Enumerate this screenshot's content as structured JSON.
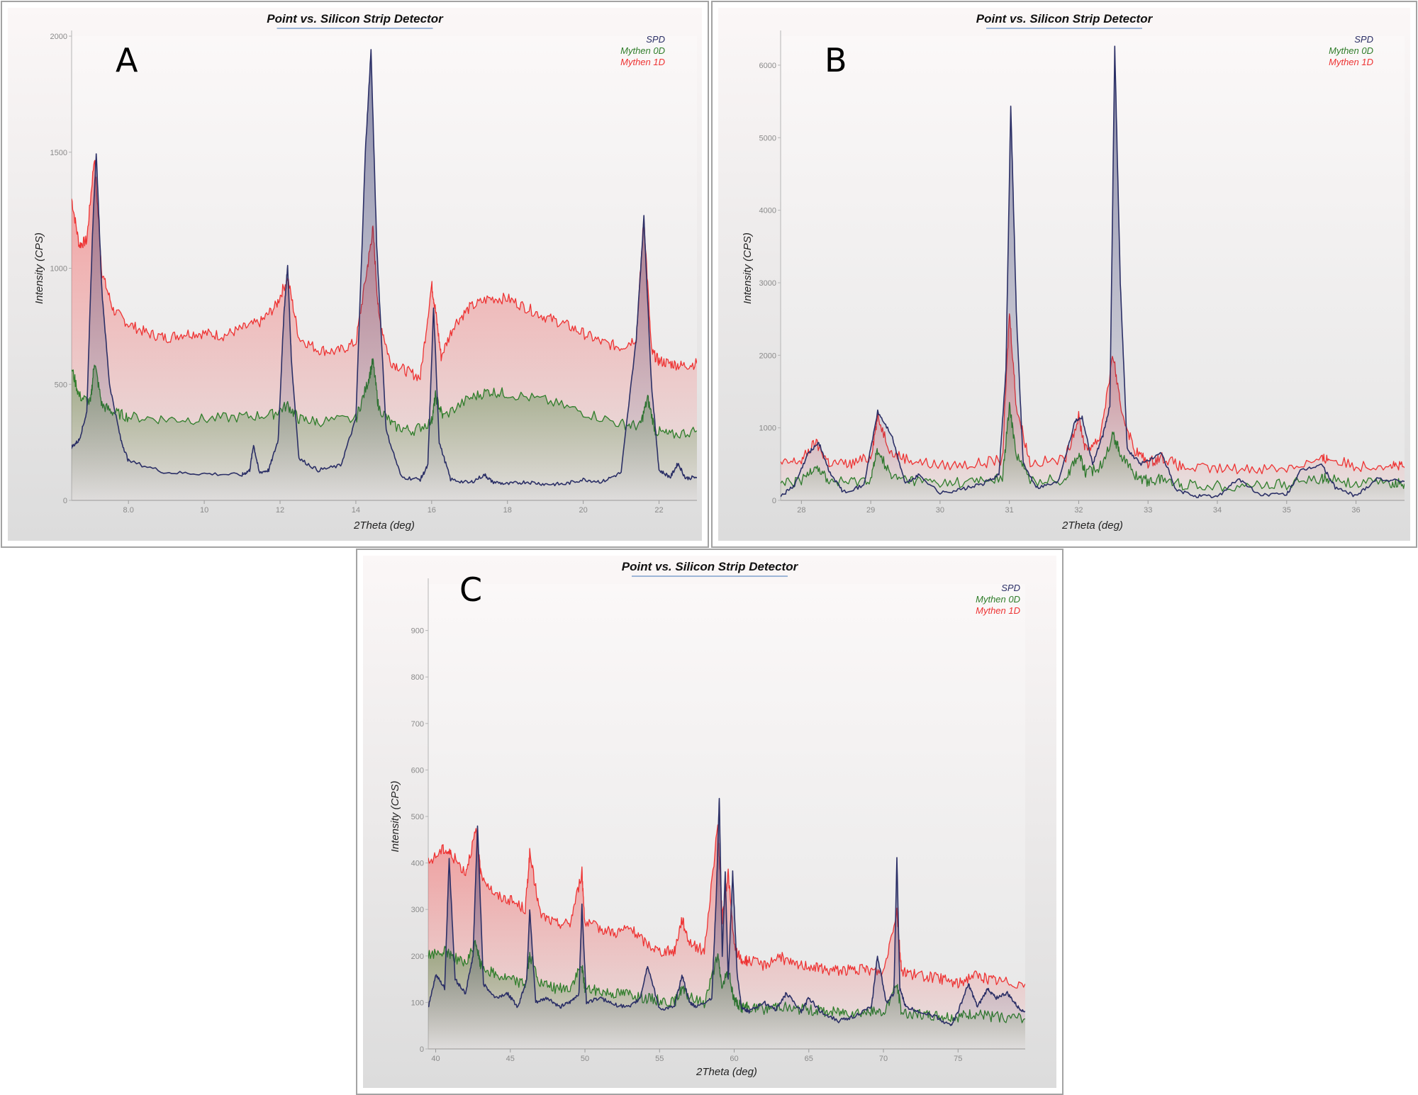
{
  "colors": {
    "SPD": "#2b2f66",
    "Mythen 0D": "#2f7d2a",
    "Mythen 1D": "#ee3333",
    "background_top": "#fbf7f7",
    "background_bottom": "#dcdcdc",
    "title_underline": "#4a7fbf"
  },
  "chart_data": [
    {
      "panel_letter": "A",
      "type": "area",
      "title": "Point vs. Silicon Strip Detector",
      "xlabel": "2Theta (deg)",
      "ylabel": "Intensity (CPS)",
      "xlim": [
        6.5,
        23.0
      ],
      "ylim": [
        0,
        2000
      ],
      "xticks": [
        8.0,
        10,
        12,
        14,
        16,
        18,
        20,
        22
      ],
      "xtick_labels": [
        "8.0",
        "10",
        "12",
        "14",
        "16",
        "18",
        "20",
        "22"
      ],
      "yticks": [
        0,
        500,
        1000,
        1500,
        2000
      ],
      "ytick_labels": [
        "0",
        "500",
        "1000",
        "1500",
        "2000"
      ],
      "legend": [
        "SPD",
        "Mythen 0D",
        "Mythen 1D"
      ],
      "legend_position": "top-right",
      "grid": false,
      "series": [
        {
          "name": "Mythen 1D",
          "x": [
            6.5,
            6.7,
            6.9,
            7.1,
            7.3,
            7.6,
            8.0,
            8.5,
            9.0,
            9.5,
            10.0,
            10.5,
            11.0,
            11.5,
            11.9,
            12.2,
            12.5,
            13.0,
            13.5,
            14.0,
            14.3,
            14.45,
            14.6,
            14.9,
            15.3,
            15.7,
            16.0,
            16.1,
            16.25,
            16.6,
            17.0,
            17.5,
            18.0,
            18.5,
            19.0,
            19.5,
            20.0,
            20.5,
            21.0,
            21.4,
            21.6,
            21.8,
            22.0,
            22.3,
            22.6,
            23.0
          ],
          "y": [
            1300,
            1100,
            1120,
            1480,
            980,
            820,
            760,
            720,
            700,
            720,
            720,
            710,
            740,
            770,
            840,
            960,
            700,
            650,
            640,
            680,
            1000,
            1170,
            800,
            600,
            560,
            530,
            930,
            820,
            620,
            760,
            830,
            870,
            870,
            830,
            790,
            760,
            720,
            680,
            660,
            700,
            1220,
            640,
            600,
            590,
            580,
            590
          ]
        },
        {
          "name": "Mythen 0D",
          "x": [
            6.5,
            6.7,
            7.0,
            7.1,
            7.3,
            7.6,
            8.0,
            9.0,
            10.0,
            11.0,
            11.8,
            12.2,
            12.5,
            13.0,
            14.0,
            14.3,
            14.45,
            14.6,
            15.0,
            15.5,
            16.0,
            16.1,
            16.3,
            17.0,
            17.5,
            18.0,
            19.0,
            20.0,
            21.0,
            21.5,
            21.7,
            21.9,
            22.3,
            23.0
          ],
          "y": [
            570,
            450,
            420,
            600,
            410,
            380,
            360,
            350,
            350,
            360,
            370,
            410,
            350,
            340,
            350,
            500,
            600,
            400,
            320,
            300,
            340,
            450,
            360,
            440,
            470,
            460,
            430,
            380,
            330,
            320,
            440,
            300,
            280,
            300
          ]
        },
        {
          "name": "SPD",
          "x": [
            6.5,
            6.7,
            6.9,
            7.05,
            7.15,
            7.3,
            7.5,
            7.8,
            8.0,
            9.0,
            10.0,
            11.0,
            11.2,
            11.3,
            11.45,
            11.7,
            11.95,
            12.1,
            12.2,
            12.3,
            12.5,
            13.0,
            13.6,
            14.0,
            14.25,
            14.4,
            14.55,
            14.8,
            15.2,
            15.7,
            15.9,
            16.05,
            16.2,
            16.5,
            17.0,
            17.4,
            17.6,
            18.0,
            18.5,
            19.0,
            19.5,
            20.0,
            20.5,
            21.0,
            21.4,
            21.6,
            21.8,
            22.0,
            22.3,
            22.5,
            22.7,
            23.0
          ],
          "y": [
            230,
            260,
            380,
            1150,
            1500,
            900,
            500,
            260,
            170,
            120,
            115,
            110,
            130,
            240,
            120,
            130,
            260,
            800,
            1010,
            600,
            180,
            130,
            150,
            350,
            1500,
            1940,
            1100,
            300,
            100,
            90,
            150,
            830,
            250,
            90,
            75,
            110,
            80,
            70,
            80,
            70,
            70,
            90,
            80,
            120,
            700,
            1220,
            500,
            130,
            100,
            160,
            95,
            100
          ]
        }
      ]
    },
    {
      "panel_letter": "B",
      "type": "area",
      "title": "Point vs. Silicon Strip Detector",
      "xlabel": "2Theta (deg)",
      "ylabel": "Intensity (CPS)",
      "xlim": [
        27.7,
        36.7
      ],
      "ylim": [
        0,
        6400
      ],
      "xticks": [
        28,
        29,
        30,
        31,
        32,
        33,
        34,
        35,
        36
      ],
      "xtick_labels": [
        "28",
        "29",
        "30",
        "31",
        "32",
        "33",
        "34",
        "35",
        "36"
      ],
      "yticks": [
        0,
        1000,
        2000,
        3000,
        4000,
        5000,
        6000
      ],
      "ytick_labels": [
        "0",
        "1000",
        "2000",
        "3000",
        "4000",
        "5000",
        "6000"
      ],
      "legend": [
        "SPD",
        "Mythen 0D",
        "Mythen 1D"
      ],
      "legend_position": "top-right",
      "grid": false,
      "series": [
        {
          "name": "Mythen 1D",
          "x": [
            27.7,
            28.0,
            28.2,
            28.4,
            28.7,
            29.0,
            29.1,
            29.3,
            29.6,
            30.0,
            30.5,
            30.9,
            31.0,
            31.1,
            31.3,
            31.8,
            32.0,
            32.1,
            32.3,
            32.5,
            32.6,
            32.8,
            33.0,
            33.2,
            33.5,
            34.0,
            34.5,
            35.0,
            35.5,
            35.6,
            36.0,
            36.5,
            36.7
          ],
          "y": [
            500,
            550,
            800,
            520,
            500,
            600,
            1150,
            650,
            550,
            480,
            500,
            560,
            2600,
            1300,
            520,
            560,
            1150,
            700,
            850,
            2000,
            1300,
            700,
            520,
            600,
            450,
            430,
            440,
            450,
            560,
            580,
            470,
            500,
            450
          ]
        },
        {
          "name": "Mythen 0D",
          "x": [
            27.7,
            28.0,
            28.2,
            28.4,
            28.7,
            29.0,
            29.1,
            29.3,
            29.6,
            30.0,
            30.5,
            30.9,
            31.0,
            31.1,
            31.3,
            31.8,
            32.0,
            32.1,
            32.3,
            32.5,
            32.6,
            32.8,
            33.0,
            33.2,
            33.5,
            34.0,
            34.5,
            35.0,
            35.5,
            35.6,
            36.0,
            36.5,
            36.7
          ],
          "y": [
            230,
            260,
            500,
            260,
            250,
            300,
            700,
            320,
            280,
            240,
            260,
            300,
            1300,
            650,
            270,
            290,
            650,
            380,
            450,
            900,
            650,
            360,
            260,
            300,
            220,
            200,
            210,
            220,
            300,
            310,
            230,
            240,
            230
          ]
        },
        {
          "name": "SPD",
          "x": [
            27.7,
            27.9,
            28.1,
            28.25,
            28.4,
            28.6,
            28.9,
            29.1,
            29.3,
            29.5,
            29.7,
            30.0,
            30.3,
            30.6,
            30.85,
            30.95,
            31.02,
            31.1,
            31.2,
            31.4,
            31.7,
            31.95,
            32.05,
            32.2,
            32.35,
            32.45,
            32.52,
            32.6,
            32.7,
            32.9,
            33.2,
            33.4,
            33.7,
            34.0,
            34.3,
            34.6,
            35.0,
            35.2,
            35.5,
            35.7,
            36.0,
            36.3,
            36.7
          ],
          "y": [
            60,
            200,
            650,
            800,
            400,
            120,
            200,
            1220,
            900,
            230,
            350,
            100,
            150,
            220,
            350,
            1800,
            5450,
            2600,
            500,
            180,
            250,
            1100,
            1150,
            500,
            900,
            1300,
            6250,
            3000,
            700,
            500,
            650,
            140,
            60,
            50,
            300,
            80,
            80,
            400,
            500,
            180,
            60,
            300,
            260
          ]
        }
      ]
    },
    {
      "panel_letter": "C",
      "type": "area",
      "title": "Point vs. Silicon Strip Detector",
      "xlabel": "2Theta (deg)",
      "ylabel": "Intensity (CPS)",
      "xlim": [
        39.5,
        79.5
      ],
      "ylim": [
        0,
        1000
      ],
      "xticks": [
        40,
        45,
        50,
        55,
        60,
        65,
        70,
        75
      ],
      "xtick_labels": [
        "40",
        "45",
        "50",
        "55",
        "60",
        "65",
        "70",
        "75"
      ],
      "yticks": [
        0,
        100,
        200,
        300,
        400,
        500,
        600,
        700,
        800,
        900
      ],
      "ytick_labels": [
        "0",
        "100",
        "200",
        "300",
        "400",
        "500",
        "600",
        "700",
        "800",
        "900"
      ],
      "legend": [
        "SPD",
        "Mythen 0D",
        "Mythen 1D"
      ],
      "legend_position": "top-right",
      "grid": false,
      "series": [
        {
          "name": "Mythen 1D",
          "x": [
            39.5,
            40.5,
            41.0,
            42.0,
            42.7,
            43.0,
            44.0,
            45.0,
            46.0,
            46.3,
            47.0,
            48.0,
            49.0,
            49.8,
            50.0,
            51.0,
            52.0,
            53.0,
            54.0,
            55.0,
            56.0,
            56.5,
            57.0,
            58.0,
            58.9,
            59.2,
            59.6,
            60.0,
            60.5,
            61.0,
            62.0,
            63.0,
            64.0,
            65.0,
            66.0,
            67.0,
            68.0,
            69.0,
            70.0,
            70.9,
            71.2,
            72.0,
            73.0,
            74.0,
            75.0,
            76.0,
            77.0,
            78.0,
            79.5
          ],
          "y": [
            400,
            430,
            420,
            380,
            470,
            380,
            330,
            320,
            300,
            420,
            290,
            270,
            270,
            380,
            270,
            260,
            250,
            260,
            230,
            210,
            210,
            280,
            230,
            210,
            480,
            280,
            380,
            220,
            190,
            190,
            180,
            200,
            180,
            180,
            170,
            170,
            170,
            170,
            165,
            300,
            170,
            160,
            155,
            150,
            140,
            160,
            150,
            145,
            140
          ]
        },
        {
          "name": "Mythen 0D",
          "x": [
            39.5,
            40.5,
            41.0,
            42.0,
            42.7,
            43.0,
            44.0,
            45.0,
            46.0,
            46.3,
            47.0,
            48.0,
            49.0,
            49.8,
            50.0,
            51.0,
            52.0,
            53.0,
            54.0,
            55.0,
            56.0,
            56.5,
            57.0,
            58.0,
            58.9,
            59.2,
            59.6,
            60.0,
            60.5,
            61.0,
            62.0,
            63.0,
            64.0,
            65.0,
            66.0,
            67.0,
            68.0,
            69.0,
            70.0,
            70.9,
            71.2,
            72.0,
            73.0,
            74.0,
            75.0,
            76.0,
            77.0,
            78.0,
            79.5
          ],
          "y": [
            200,
            210,
            205,
            180,
            230,
            180,
            160,
            150,
            140,
            200,
            140,
            130,
            130,
            180,
            130,
            125,
            120,
            120,
            110,
            105,
            100,
            130,
            110,
            100,
            200,
            130,
            170,
            105,
            90,
            90,
            85,
            95,
            85,
            85,
            80,
            80,
            80,
            80,
            78,
            140,
            80,
            75,
            72,
            70,
            68,
            75,
            70,
            68,
            65
          ]
        },
        {
          "name": "SPD",
          "x": [
            39.5,
            40.0,
            40.6,
            40.9,
            41.3,
            42.0,
            42.5,
            42.8,
            43.2,
            44.0,
            44.8,
            45.5,
            46.1,
            46.3,
            46.7,
            47.5,
            48.3,
            49.0,
            49.6,
            49.8,
            50.1,
            51.0,
            52.0,
            53.0,
            53.7,
            54.2,
            55.0,
            56.0,
            56.5,
            57.0,
            57.5,
            58.5,
            58.8,
            59.0,
            59.2,
            59.4,
            59.6,
            59.9,
            60.2,
            60.5,
            61.0,
            62.0,
            62.8,
            63.5,
            64.5,
            65.0,
            65.8,
            67.0,
            68.0,
            69.2,
            69.6,
            70.2,
            70.7,
            70.9,
            71.1,
            71.5,
            72.5,
            73.5,
            74.5,
            75.0,
            75.7,
            76.3,
            77.0,
            77.5,
            78.3,
            79.0,
            79.5
          ],
          "y": [
            90,
            160,
            130,
            410,
            150,
            120,
            200,
            480,
            140,
            110,
            120,
            90,
            150,
            300,
            100,
            110,
            90,
            100,
            120,
            310,
            100,
            110,
            95,
            90,
            110,
            180,
            85,
            90,
            160,
            100,
            90,
            110,
            330,
            540,
            200,
            380,
            150,
            380,
            160,
            90,
            80,
            100,
            85,
            120,
            80,
            110,
            80,
            60,
            70,
            90,
            200,
            100,
            120,
            410,
            130,
            90,
            80,
            70,
            50,
            80,
            140,
            90,
            130,
            110,
            120,
            90,
            80
          ]
        }
      ]
    }
  ]
}
